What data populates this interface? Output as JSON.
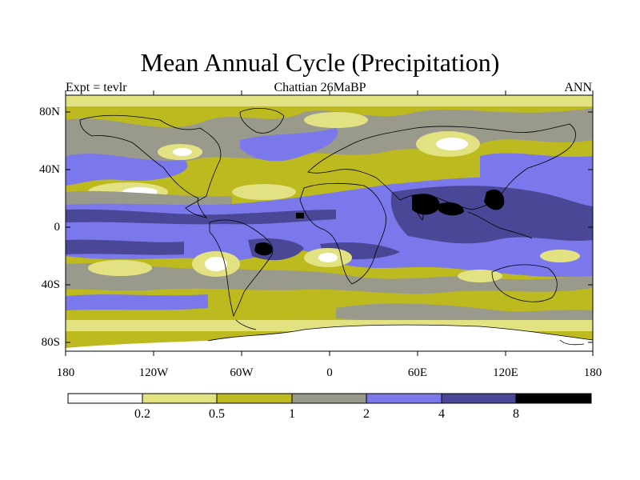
{
  "title": "Mean Annual Cycle (Precipitation)",
  "subtitle_left": "Expt = tevlr",
  "subtitle_center": "Chattian  26MaBP",
  "subtitle_right": "ANN",
  "lat_labels": [
    "80N",
    "40N",
    "0",
    "40S",
    "80S"
  ],
  "lon_labels": [
    "180",
    "120W",
    "60W",
    "0",
    "60E",
    "120E",
    "180"
  ],
  "colorbar": {
    "labels": [
      "0.2",
      "0.5",
      "1",
      "2",
      "4",
      "8"
    ],
    "colors": [
      "#ffffff",
      "#e3e283",
      "#bcba1f",
      "#9a9a8c",
      "#7a78ea",
      "#4a4896",
      "#000000"
    ]
  }
}
